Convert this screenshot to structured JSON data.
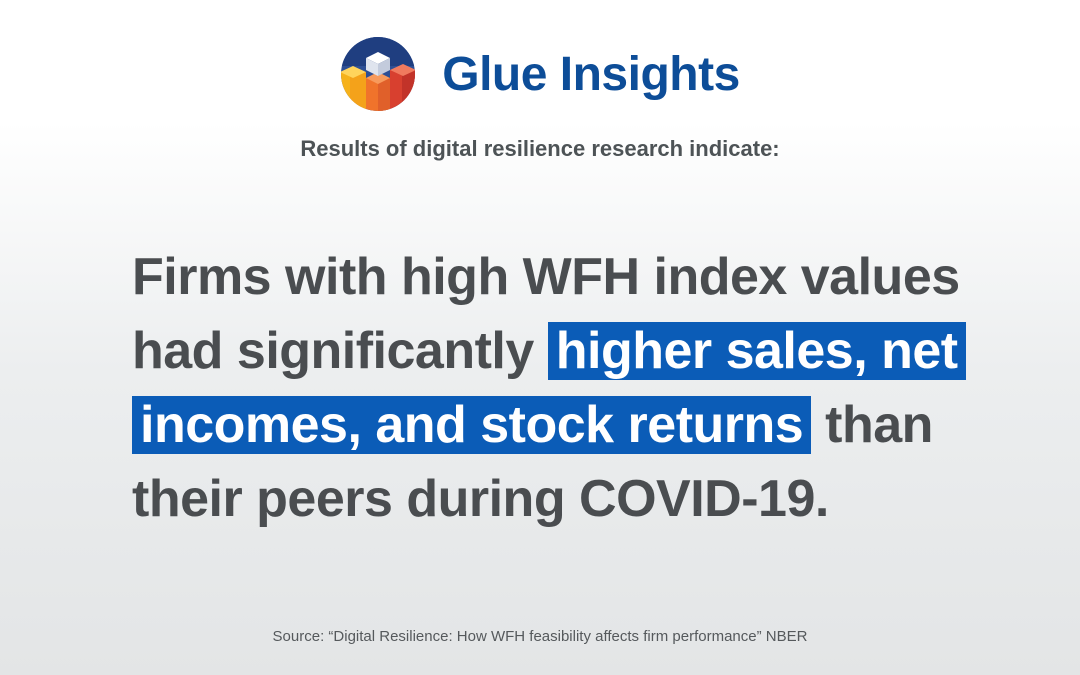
{
  "brand": {
    "name": "Glue Insights",
    "logo_icon": "glue-insights-logo-icon",
    "color": "#0d4d98"
  },
  "intro": "Results of digital resilience research indicate:",
  "statement": {
    "before": "Firms with high WFH index values had significantly ",
    "highlight": "higher sales, net incomes, and stock returns",
    "after": " than their peers during COVID-19.",
    "text_color": "#4a4d50",
    "highlight_color": "#0b5cb7"
  },
  "source": "Source: “Digital Resilience: How WFH feasibility affects firm performance” NBER"
}
